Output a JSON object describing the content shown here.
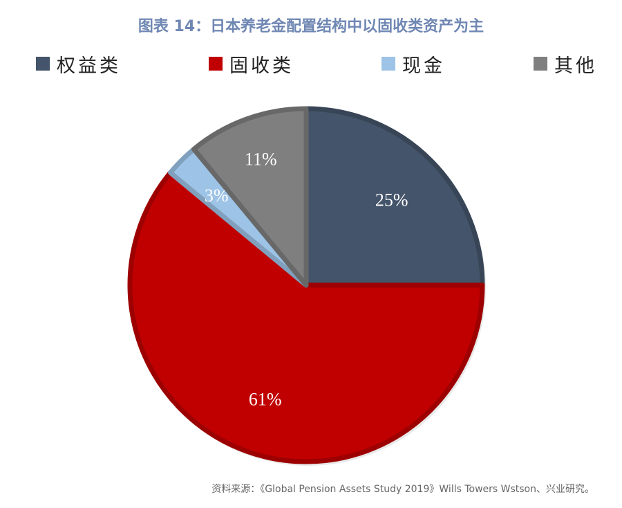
{
  "chart_data": {
    "type": "pie",
    "title": "图表 14：日本养老金配置结构中以固收类资产为主",
    "slices": [
      {
        "label": "权益类",
        "value": 25,
        "value_label": "25%",
        "color": "#44546a"
      },
      {
        "label": "固收类",
        "value": 61,
        "value_label": "61%",
        "color": "#c00000"
      },
      {
        "label": "现金",
        "value": 3,
        "value_label": "3%",
        "color": "#9dc3e6"
      },
      {
        "label": "其他",
        "value": 11,
        "value_label": "11%",
        "color": "#7f7f7f"
      }
    ],
    "start": "12 o'clock",
    "direction": "clockwise",
    "legend_position": "top",
    "source": "资料来源：《Global Pension Assets Study 2019》Wills Towers Wstson、兴业研究。"
  }
}
